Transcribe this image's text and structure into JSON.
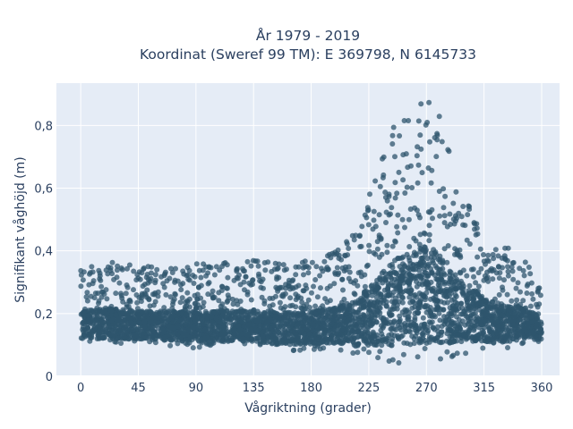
{
  "chart_data": {
    "type": "scatter",
    "title_line1": "År 1979 - 2019",
    "title_line2": "Koordinat (Sweref 99 TM): E 369798, N 6145733",
    "xlabel": "Vågriktning (grader)",
    "ylabel": "Signifikant våghöjd (m)",
    "xlim": [
      -19,
      374
    ],
    "ylim": [
      0,
      0.935
    ],
    "x_ticks": [
      0,
      45,
      90,
      135,
      180,
      225,
      270,
      315,
      360
    ],
    "x_tick_labels": [
      "0",
      "45",
      "90",
      "135",
      "180",
      "225",
      "270",
      "315",
      "360"
    ],
    "y_ticks": [
      0,
      0.2,
      0.4,
      0.6,
      0.8
    ],
    "y_tick_labels": [
      "0",
      "0,2",
      "0,4",
      "0,6",
      "0,8"
    ],
    "grid": true,
    "marker_color": "#2f566d",
    "plot_bg": "#e5ecf6",
    "envelope": {
      "x": [
        0,
        20,
        45,
        90,
        135,
        160,
        180,
        200,
        215,
        225,
        235,
        245,
        255,
        262,
        268,
        272,
        278,
        285,
        292,
        300,
        310,
        320,
        330,
        345,
        360
      ],
      "y_max": [
        0.35,
        0.37,
        0.35,
        0.36,
        0.37,
        0.36,
        0.37,
        0.4,
        0.46,
        0.58,
        0.7,
        0.8,
        0.85,
        0.88,
        0.9,
        0.89,
        0.86,
        0.76,
        0.65,
        0.6,
        0.5,
        0.45,
        0.42,
        0.38,
        0.3
      ],
      "y_min": [
        0.1,
        0.1,
        0.1,
        0.09,
        0.09,
        0.08,
        0.08,
        0.08,
        0.07,
        0.06,
        0.05,
        0.04,
        0.04,
        0.04,
        0.04,
        0.04,
        0.05,
        0.05,
        0.06,
        0.07,
        0.08,
        0.08,
        0.08,
        0.1,
        0.1
      ]
    }
  }
}
